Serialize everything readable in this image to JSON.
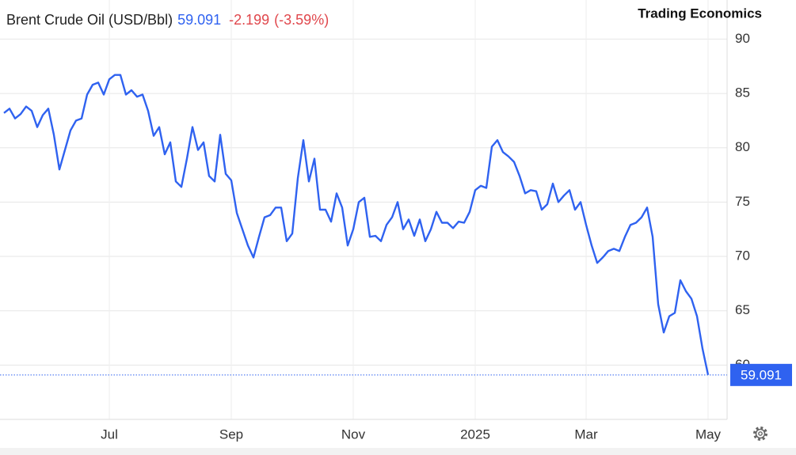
{
  "chart_data": {
    "type": "line",
    "title": "Brent Crude Oil (USD/Bbl)",
    "last_value": 59.091,
    "change": -2.199,
    "change_pct": {
      "value": -3.59,
      "label": "(-3.59%)"
    },
    "brand": "Trading Economics",
    "categories": [
      null,
      null,
      null,
      null,
      null,
      null,
      null,
      null,
      null,
      null,
      null,
      null,
      null,
      null,
      null,
      null,
      null,
      null,
      null,
      "Jul",
      null,
      null,
      null,
      null,
      null,
      null,
      null,
      null,
      null,
      null,
      null,
      null,
      null,
      null,
      null,
      null,
      null,
      null,
      null,
      null,
      null,
      "Sep",
      null,
      null,
      null,
      null,
      null,
      null,
      null,
      null,
      null,
      null,
      null,
      null,
      null,
      null,
      null,
      null,
      null,
      null,
      null,
      null,
      null,
      "Nov",
      null,
      null,
      null,
      null,
      null,
      null,
      null,
      null,
      null,
      null,
      null,
      null,
      null,
      null,
      null,
      null,
      null,
      null,
      null,
      null,
      null,
      "2025",
      null,
      null,
      null,
      null,
      null,
      null,
      null,
      null,
      null,
      null,
      null,
      null,
      null,
      null,
      null,
      null,
      null,
      null,
      null,
      "Mar",
      null,
      null,
      null,
      null,
      null,
      null,
      null,
      null,
      null,
      null,
      null,
      null,
      null,
      null,
      null,
      null,
      null,
      null,
      null,
      null,
      null,
      "May"
    ],
    "series": [
      {
        "name": "Brent Crude Oil",
        "color": "#2f62f0",
        "values": [
          83.2,
          83.6,
          82.7,
          83.1,
          83.8,
          83.4,
          81.9,
          83.0,
          83.6,
          81.2,
          78.0,
          79.8,
          81.6,
          82.5,
          82.7,
          84.9,
          85.8,
          86.0,
          84.9,
          86.3,
          86.7,
          86.7,
          84.9,
          85.3,
          84.7,
          84.9,
          83.4,
          81.1,
          81.9,
          79.4,
          80.5,
          76.9,
          76.4,
          79.0,
          81.9,
          79.8,
          80.5,
          77.4,
          76.9,
          81.2,
          77.6,
          77.0,
          74.0,
          72.5,
          71.0,
          69.9,
          71.8,
          73.6,
          73.8,
          74.5,
          74.5,
          71.4,
          72.1,
          77.2,
          80.7,
          76.9,
          79.0,
          74.3,
          74.3,
          73.2,
          75.8,
          74.5,
          71.0,
          72.5,
          75.0,
          75.4,
          71.8,
          71.9,
          71.4,
          72.9,
          73.6,
          75.0,
          72.5,
          73.4,
          71.9,
          73.4,
          71.4,
          72.5,
          74.1,
          73.1,
          73.1,
          72.6,
          73.2,
          73.1,
          74.1,
          76.1,
          76.5,
          76.3,
          80.1,
          80.7,
          79.6,
          79.2,
          78.7,
          77.4,
          75.8,
          76.1,
          76.0,
          74.3,
          74.8,
          76.7,
          75.0,
          75.6,
          76.1,
          74.3,
          75.0,
          72.9,
          71.0,
          69.4,
          69.9,
          70.5,
          70.7,
          70.5,
          71.8,
          72.9,
          73.1,
          73.6,
          74.5,
          71.8,
          65.6,
          63.0,
          64.5,
          64.8,
          67.8,
          66.8,
          66.1,
          64.5,
          61.5,
          59.091
        ]
      }
    ],
    "ylim": [
      55,
      93.6
    ],
    "yticks": [
      60,
      65,
      70,
      75,
      80,
      85,
      90
    ],
    "grid": true
  }
}
